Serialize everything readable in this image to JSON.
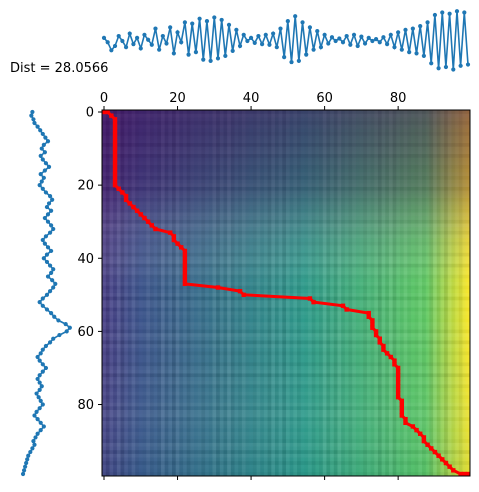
{
  "dist_label": "Dist = 28.0566",
  "chart_data": [
    {
      "type": "heatmap",
      "panel": "cost-matrix",
      "title": "",
      "xlabel": "",
      "ylabel": "",
      "xlim": [
        0,
        99
      ],
      "ylim": [
        0,
        99
      ],
      "x_ticks": [
        "0",
        "20",
        "40",
        "60",
        "80"
      ],
      "y_ticks": [
        "0",
        "20",
        "40",
        "60",
        "80"
      ],
      "colormap": "viridis",
      "warping_path": [
        [
          0,
          0
        ],
        [
          0,
          1
        ],
        [
          1,
          2
        ],
        [
          2,
          3
        ],
        [
          3,
          3
        ],
        [
          4,
          3
        ],
        [
          5,
          3
        ],
        [
          6,
          3
        ],
        [
          7,
          3
        ],
        [
          8,
          3
        ],
        [
          9,
          3
        ],
        [
          10,
          3
        ],
        [
          11,
          3
        ],
        [
          12,
          3
        ],
        [
          13,
          3
        ],
        [
          14,
          3
        ],
        [
          15,
          3
        ],
        [
          16,
          3
        ],
        [
          17,
          3
        ],
        [
          18,
          3
        ],
        [
          19,
          3
        ],
        [
          20,
          3
        ],
        [
          21,
          4
        ],
        [
          22,
          5
        ],
        [
          23,
          6
        ],
        [
          24,
          6
        ],
        [
          25,
          7
        ],
        [
          26,
          8
        ],
        [
          27,
          9
        ],
        [
          28,
          10
        ],
        [
          29,
          11
        ],
        [
          30,
          12
        ],
        [
          31,
          13
        ],
        [
          32,
          14
        ],
        [
          33,
          18
        ],
        [
          34,
          19
        ],
        [
          35,
          19
        ],
        [
          36,
          20
        ],
        [
          37,
          21
        ],
        [
          38,
          22
        ],
        [
          39,
          22
        ],
        [
          40,
          22
        ],
        [
          41,
          22
        ],
        [
          42,
          22
        ],
        [
          43,
          22
        ],
        [
          44,
          22
        ],
        [
          45,
          22
        ],
        [
          46,
          22
        ],
        [
          47,
          22
        ],
        [
          48,
          31
        ],
        [
          49,
          37
        ],
        [
          50,
          38
        ],
        [
          51,
          56
        ],
        [
          52,
          57
        ],
        [
          53,
          65
        ],
        [
          54,
          66
        ],
        [
          55,
          72
        ],
        [
          56,
          72
        ],
        [
          57,
          73
        ],
        [
          58,
          73
        ],
        [
          59,
          73
        ],
        [
          60,
          74
        ],
        [
          61,
          74
        ],
        [
          62,
          75
        ],
        [
          63,
          75
        ],
        [
          64,
          76
        ],
        [
          65,
          76
        ],
        [
          66,
          77
        ],
        [
          67,
          78
        ],
        [
          68,
          79
        ],
        [
          69,
          79
        ],
        [
          70,
          80
        ],
        [
          71,
          80
        ],
        [
          72,
          80
        ],
        [
          73,
          80
        ],
        [
          74,
          80
        ],
        [
          75,
          80
        ],
        [
          76,
          80
        ],
        [
          77,
          80
        ],
        [
          78,
          80
        ],
        [
          79,
          81
        ],
        [
          80,
          81
        ],
        [
          81,
          81
        ],
        [
          82,
          81
        ],
        [
          83,
          81
        ],
        [
          84,
          82
        ],
        [
          85,
          82
        ],
        [
          86,
          84
        ],
        [
          87,
          85
        ],
        [
          88,
          86
        ],
        [
          89,
          87
        ],
        [
          90,
          87
        ],
        [
          91,
          88
        ],
        [
          92,
          89
        ],
        [
          93,
          90
        ],
        [
          94,
          91
        ],
        [
          95,
          92
        ],
        [
          96,
          93
        ],
        [
          97,
          94
        ],
        [
          98,
          95
        ],
        [
          99,
          97
        ],
        [
          99,
          98
        ],
        [
          99,
          99
        ]
      ],
      "path_color": "#ff0000",
      "colors": [
        "#440154",
        "#3b528b",
        "#21918c",
        "#5ec962",
        "#fde725"
      ]
    },
    {
      "type": "line",
      "panel": "top-series",
      "color": "#1f77b4",
      "x": [
        0,
        1,
        2,
        3,
        4,
        5,
        6,
        7,
        8,
        9,
        10,
        11,
        12,
        13,
        14,
        15,
        16,
        17,
        18,
        19,
        20,
        21,
        22,
        23,
        24,
        25,
        26,
        27,
        28,
        29,
        30,
        31,
        32,
        33,
        34,
        35,
        36,
        37,
        38,
        39,
        40,
        41,
        42,
        43,
        44,
        45,
        46,
        47,
        48,
        49,
        50,
        51,
        52,
        53,
        54,
        55,
        56,
        57,
        58,
        59,
        60,
        61,
        62,
        63,
        64,
        65,
        66,
        67,
        68,
        69,
        70,
        71,
        72,
        73,
        74,
        75,
        76,
        77,
        78,
        79,
        80,
        81,
        82,
        83,
        84,
        85,
        86,
        87,
        88,
        89,
        90,
        91,
        92,
        93,
        94,
        95,
        96,
        97,
        98,
        99
      ],
      "y": [
        0.55,
        0.48,
        0.35,
        0.42,
        0.58,
        0.5,
        0.4,
        0.62,
        0.45,
        0.55,
        0.38,
        0.6,
        0.52,
        0.44,
        0.7,
        0.36,
        0.58,
        0.46,
        0.72,
        0.3,
        0.64,
        0.48,
        0.8,
        0.28,
        0.78,
        0.32,
        0.86,
        0.2,
        0.82,
        0.18,
        0.88,
        0.22,
        0.84,
        0.26,
        0.76,
        0.34,
        0.68,
        0.42,
        0.6,
        0.5,
        0.55,
        0.47,
        0.58,
        0.45,
        0.6,
        0.44,
        0.62,
        0.4,
        0.7,
        0.24,
        0.82,
        0.16,
        0.9,
        0.18,
        0.8,
        0.28,
        0.72,
        0.36,
        0.66,
        0.4,
        0.6,
        0.46,
        0.56,
        0.5,
        0.54,
        0.48,
        0.58,
        0.44,
        0.6,
        0.42,
        0.57,
        0.46,
        0.55,
        0.5,
        0.53,
        0.48,
        0.56,
        0.45,
        0.6,
        0.4,
        0.64,
        0.36,
        0.68,
        0.32,
        0.7,
        0.3,
        0.74,
        0.26,
        0.8,
        0.14,
        0.92,
        0.06,
        0.96,
        0.08,
        0.94,
        0.04,
        0.98,
        0.1,
        0.96,
        0.12
      ]
    },
    {
      "type": "line",
      "panel": "left-series",
      "color": "#1f77b4",
      "orientation": "vertical",
      "x": [
        0,
        1,
        2,
        3,
        4,
        5,
        6,
        7,
        8,
        9,
        10,
        11,
        12,
        13,
        14,
        15,
        16,
        17,
        18,
        19,
        20,
        21,
        22,
        23,
        24,
        25,
        26,
        27,
        28,
        29,
        30,
        31,
        32,
        33,
        34,
        35,
        36,
        37,
        38,
        39,
        40,
        41,
        42,
        43,
        44,
        45,
        46,
        47,
        48,
        49,
        50,
        51,
        52,
        53,
        54,
        55,
        56,
        57,
        58,
        59,
        60,
        61,
        62,
        63,
        64,
        65,
        66,
        67,
        68,
        69,
        70,
        71,
        72,
        73,
        74,
        75,
        76,
        77,
        78,
        79,
        80,
        81,
        82,
        83,
        84,
        85,
        86,
        87,
        88,
        89,
        90,
        91,
        92,
        93,
        94,
        95,
        96,
        97,
        98,
        99
      ],
      "y": [
        0.2,
        0.18,
        0.22,
        0.24,
        0.3,
        0.35,
        0.4,
        0.45,
        0.5,
        0.42,
        0.38,
        0.44,
        0.36,
        0.4,
        0.46,
        0.52,
        0.44,
        0.36,
        0.42,
        0.38,
        0.34,
        0.4,
        0.46,
        0.54,
        0.58,
        0.52,
        0.48,
        0.56,
        0.5,
        0.44,
        0.5,
        0.56,
        0.6,
        0.54,
        0.46,
        0.4,
        0.44,
        0.5,
        0.56,
        0.48,
        0.42,
        0.48,
        0.54,
        0.6,
        0.56,
        0.5,
        0.58,
        0.64,
        0.6,
        0.54,
        0.48,
        0.4,
        0.34,
        0.4,
        0.48,
        0.56,
        0.62,
        0.7,
        0.84,
        0.92,
        0.86,
        0.72,
        0.6,
        0.54,
        0.46,
        0.4,
        0.36,
        0.3,
        0.34,
        0.4,
        0.46,
        0.4,
        0.34,
        0.3,
        0.34,
        0.38,
        0.34,
        0.28,
        0.32,
        0.36,
        0.4,
        0.34,
        0.28,
        0.24,
        0.3,
        0.36,
        0.42,
        0.36,
        0.3,
        0.26,
        0.22,
        0.24,
        0.2,
        0.16,
        0.12,
        0.1,
        0.08,
        0.06,
        0.04,
        0.02
      ]
    }
  ]
}
